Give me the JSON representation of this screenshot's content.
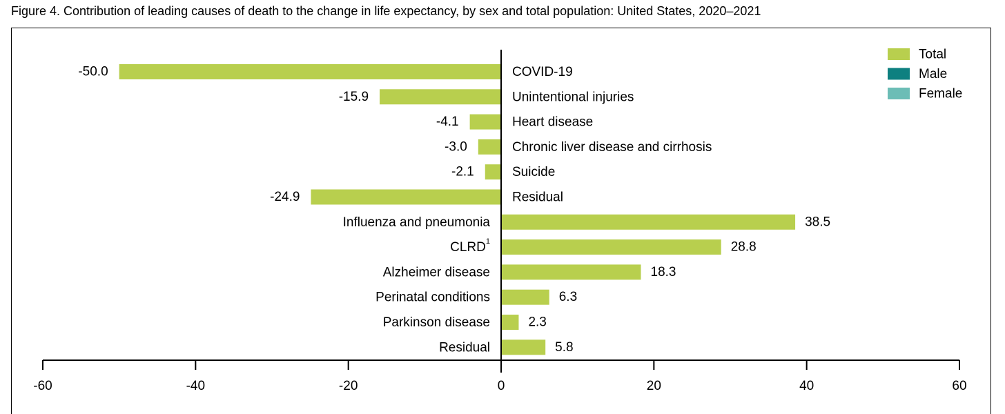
{
  "figure_title": "Figure 4. Contribution of leading causes of death to the change in life expectancy, by sex and total population: United States, 2020–2021",
  "colors": {
    "total": "#b8cf4e",
    "male": "#0e8080",
    "female": "#6cbdb6"
  },
  "chart_data": {
    "type": "bar",
    "orientation": "horizontal",
    "title": "Figure 4. Contribution of leading causes of death to the change in life expectancy, by sex and total population: United States, 2020–2021",
    "categories": [
      {
        "label": "COVID-19",
        "sup": ""
      },
      {
        "label": "Unintentional injuries",
        "sup": ""
      },
      {
        "label": "Heart disease",
        "sup": ""
      },
      {
        "label": "Chronic liver disease and cirrhosis",
        "sup": ""
      },
      {
        "label": "Suicide",
        "sup": ""
      },
      {
        "label": "Residual",
        "sup": ""
      },
      {
        "label": "Influenza and pneumonia",
        "sup": ""
      },
      {
        "label": "CLRD",
        "sup": "1"
      },
      {
        "label": "Alzheimer disease",
        "sup": ""
      },
      {
        "label": "Perinatal conditions",
        "sup": ""
      },
      {
        "label": "Parkinson disease",
        "sup": ""
      },
      {
        "label": "Residual",
        "sup": ""
      }
    ],
    "series": [
      {
        "name": "Total",
        "values": [
          -50.0,
          -15.9,
          -4.1,
          -3.0,
          -2.1,
          -24.9,
          38.5,
          28.8,
          18.3,
          6.3,
          2.3,
          5.8
        ],
        "data_labels": [
          "-50.0",
          "-15.9",
          "-4.1",
          "-3.0",
          "-2.1",
          "-24.9",
          "38.5",
          "28.8",
          "18.3",
          "6.3",
          "2.3",
          "5.8"
        ]
      }
    ],
    "legend": {
      "placement": "top-right",
      "entries": [
        {
          "name": "Total",
          "color": "#b8cf4e"
        },
        {
          "name": "Male",
          "color": "#0e8080"
        },
        {
          "name": "Female",
          "color": "#6cbdb6"
        }
      ]
    },
    "xlim": [
      -60,
      60
    ],
    "xticks": [
      -60,
      -40,
      -20,
      0,
      20,
      40,
      60
    ],
    "xlabel": "",
    "ylabel": "",
    "grid": false
  }
}
